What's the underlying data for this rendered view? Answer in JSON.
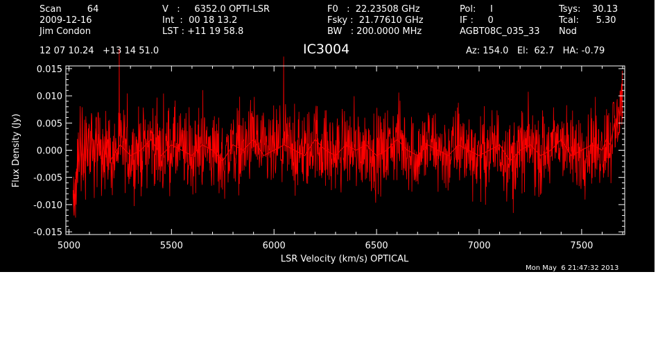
{
  "header": {
    "col1": [
      "Scan         64",
      "2009-12-16",
      "Jim Condon"
    ],
    "col2": [
      "V   :     6352.0 OPTI-LSR",
      "Int  :  00 18 13.2",
      "LST : +11 19 58.8"
    ],
    "col3": [
      "F0   :  22.23508 GHz",
      "Fsky :  21.77610 GHz",
      "BW   : 200.0000 MHz"
    ],
    "col4": [
      "Pol:     I",
      "IF :     0",
      "AGBT08C_035_33"
    ],
    "col5": [
      "Tsys:    30.13",
      "Tcal:      5.30",
      "Nod"
    ],
    "coords": "12 07 10.24   +13 14 51.0",
    "source": "IC3004",
    "pointing": "Az: 154.0   El:  62.7   HA: -0.79"
  },
  "footer": {
    "timestamp": "Mon May  6 21:47:32 2013"
  },
  "colors": {
    "background": "#000000",
    "axes": "#ffffff",
    "trace": "#ff0000"
  },
  "chart_data": {
    "type": "line",
    "title": "IC3004",
    "xlabel": "LSR Velocity (km/s) OPTICAL",
    "ylabel": "Flux Density (Jy)",
    "xlim": [
      4985,
      7710
    ],
    "ylim": [
      -0.0155,
      0.0155
    ],
    "xticks": [
      5000,
      5500,
      6000,
      6500,
      7000,
      7500
    ],
    "xtick_labels": [
      "5000",
      "5500",
      "6000",
      "6500",
      "7000",
      "7500"
    ],
    "yticks": [
      -0.015,
      -0.01,
      -0.005,
      0.0,
      0.005,
      0.01,
      0.015
    ],
    "ytick_labels": [
      "-0.015",
      "-0.010",
      "-0.005",
      "0.000",
      "0.005",
      "0.010",
      "0.015"
    ],
    "grid": false,
    "series": [
      {
        "color": "#ff0000",
        "x": [
          5020,
          5025,
          5030,
          5035,
          5040,
          5045,
          5050,
          5055,
          5060,
          5065,
          5070,
          5075,
          5080,
          5085,
          5090,
          5095,
          5100,
          5105,
          5110,
          5115,
          5120,
          5125,
          5130,
          5135,
          5140,
          5145,
          5150,
          5155,
          5160,
          5165,
          5170,
          5175,
          5180,
          5185,
          5190,
          5195,
          5200,
          5250,
          5300,
          5350,
          5400,
          5450,
          5500,
          5550,
          5600,
          5650,
          5700,
          5750,
          5800,
          5850,
          5900,
          5950,
          6000,
          6050,
          6100,
          6150,
          6200,
          6250,
          6300,
          6350,
          6400,
          6450,
          6500,
          6550,
          6600,
          6650,
          6700,
          6750,
          6800,
          6850,
          6900,
          6950,
          7000,
          7050,
          7100,
          7150,
          7200,
          7250,
          7300,
          7350,
          7400,
          7450,
          7500,
          7550,
          7600,
          7620,
          7640,
          7650,
          7660,
          7665,
          7670,
          7675,
          7680,
          7685,
          7690,
          7695,
          7700
        ],
        "y": [
          -0.008,
          -0.012,
          -0.006,
          -0.01,
          -0.003,
          0.002,
          -0.004,
          0.004,
          -0.003,
          0.003,
          -0.005,
          0.002,
          -0.002,
          0.005,
          -0.003,
          0.004,
          0.001,
          -0.004,
          0.006,
          -0.002,
          0.002,
          -0.003,
          0.004,
          0.001,
          -0.002,
          0.003,
          -0.001,
          0.002,
          -0.004,
          0.003,
          0.0,
          -0.002,
          0.004,
          -0.003,
          0.002,
          0.001,
          -0.002,
          0.001,
          -0.001,
          0.0,
          0.002,
          -0.001,
          0.001,
          0.0,
          -0.001,
          0.001,
          0.0,
          -0.002,
          0.001,
          0.0,
          0.002,
          -0.001,
          0.0,
          0.001,
          0.0,
          -0.001,
          0.002,
          0.0,
          -0.001,
          0.001,
          0.0,
          0.001,
          -0.001,
          0.0,
          0.002,
          0.0,
          -0.001,
          0.001,
          0.0,
          -0.001,
          0.001,
          0.0,
          -0.001,
          0.0,
          0.001,
          -0.002,
          0.0,
          0.001,
          -0.001,
          0.0,
          0.002,
          -0.001,
          0.0,
          0.001,
          0.0,
          0.002,
          0.001,
          0.003,
          0.005,
          0.002,
          0.006,
          0.004,
          0.008,
          0.006,
          0.01,
          0.009,
          0.011
        ]
      }
    ]
  }
}
